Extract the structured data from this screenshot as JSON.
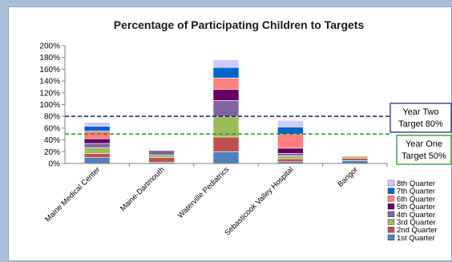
{
  "chart_data": {
    "type": "bar",
    "stacked": true,
    "title": "Percentage of Participating Children to Targets",
    "categories": [
      "Maine Medical Center",
      "Maine-Dartmouth",
      "Waterville Pediatrics",
      "Sebasticook Valley Hospital",
      "Bangor"
    ],
    "ylim": [
      0,
      200
    ],
    "yticks": [
      "0%",
      "20%",
      "40%",
      "60%",
      "80%",
      "100%",
      "120%",
      "140%",
      "160%",
      "180%",
      "200%"
    ],
    "legend_position": "right",
    "grid": false,
    "series": [
      {
        "name": "1st Quarter",
        "color": "#4f81bd",
        "values": [
          10,
          2,
          20,
          3,
          5
        ]
      },
      {
        "name": "2nd Quarter",
        "color": "#c0504d",
        "values": [
          7,
          8,
          25,
          5,
          4
        ]
      },
      {
        "name": "3rd Quarter",
        "color": "#9bbb59",
        "values": [
          10,
          4,
          35,
          5,
          3
        ]
      },
      {
        "name": "4th Quarter",
        "color": "#8064a2",
        "values": [
          7,
          8,
          27,
          4,
          0
        ]
      },
      {
        "name": "5th Quarter",
        "color": "#660066",
        "values": [
          8,
          0,
          19,
          9,
          0
        ]
      },
      {
        "name": "6th Quarter",
        "color": "#ff7f7f",
        "values": [
          13,
          0,
          19,
          24,
          0
        ]
      },
      {
        "name": "7th Quarter",
        "color": "#0066cc",
        "values": [
          8,
          0,
          18,
          12,
          0
        ]
      },
      {
        "name": "8th Quarter",
        "color": "#ccccff",
        "values": [
          7,
          0,
          13,
          11,
          0
        ]
      }
    ],
    "reference_lines": [
      {
        "value": 80,
        "color": "#1f2f8f",
        "style": "dashed",
        "label_lines": [
          "Year Two",
          "Target 80%"
        ],
        "border": "#1f2f8f"
      },
      {
        "value": 50,
        "color": "#1e9e1e",
        "style": "dashed",
        "label_lines": [
          "Year One",
          "Target 50%"
        ],
        "border": "#1e9e1e"
      }
    ]
  }
}
